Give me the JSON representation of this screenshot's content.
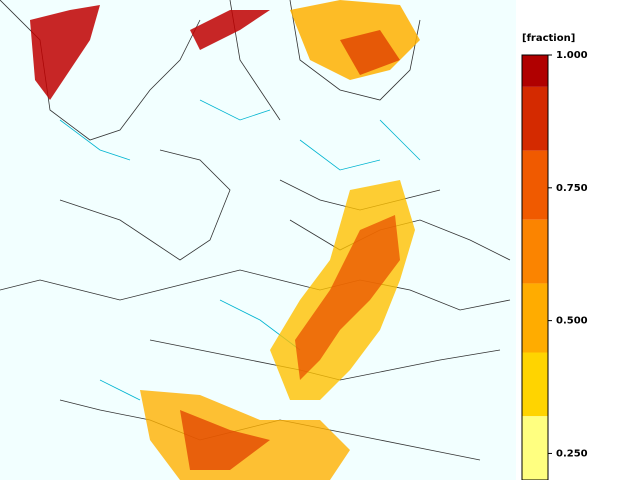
{
  "colorbar": {
    "label": "[fraction]",
    "lim": [
      0.2,
      1
    ],
    "ticks": [
      {
        "value": 1,
        "label": "1.000"
      },
      {
        "value": 0.75,
        "label": "0.750"
      },
      {
        "value": 0.5,
        "label": "0.500"
      },
      {
        "value": 0.25,
        "label": "0.250"
      }
    ],
    "bands": [
      {
        "from": 0.94,
        "to": 1,
        "color": "#b00000"
      },
      {
        "from": 0.82,
        "to": 0.94,
        "color": "#d42a00"
      },
      {
        "from": 0.69,
        "to": 0.82,
        "color": "#f05a00"
      },
      {
        "from": 0.57,
        "to": 0.69,
        "color": "#fb8400"
      },
      {
        "from": 0.44,
        "to": 0.57,
        "color": "#ffac00"
      },
      {
        "from": 0.32,
        "to": 0.44,
        "color": "#ffd400"
      },
      {
        "from": 0.2,
        "to": 0.32,
        "color": "#ffff80"
      }
    ]
  }
}
